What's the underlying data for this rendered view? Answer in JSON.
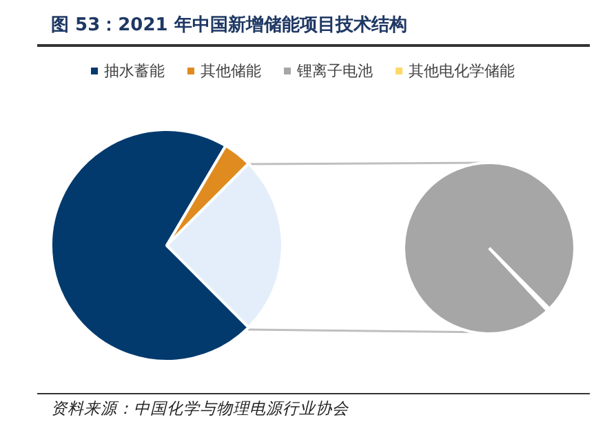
{
  "chart_data": [
    {
      "type": "pie",
      "title": "图 53：2021 年中国新增储能项目技术结构",
      "categories": [
        "抽水蓄能",
        "其他储能",
        null
      ],
      "values": [
        71,
        4,
        25
      ],
      "colors": [
        "#023a6e",
        "#e08b1f",
        "#e4eefb"
      ],
      "legend": "top",
      "annotations": [
        "资料来源：中国化学与物理电源行业协会"
      ]
    },
    {
      "type": "pie",
      "categories": [
        "锂离子电池",
        "其他电化学储能"
      ],
      "values": [
        99.5,
        0.5
      ],
      "colors": [
        "#a6a6a6",
        "#ffd966"
      ],
      "legend": "top"
    }
  ]
}
